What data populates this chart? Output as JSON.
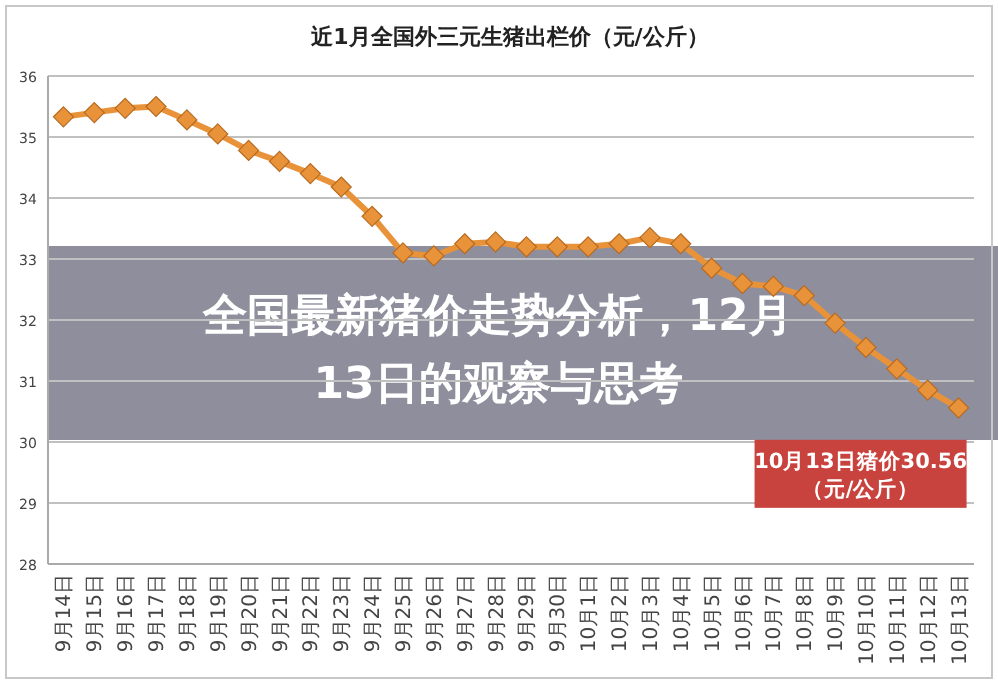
{
  "chart_data": {
    "type": "line",
    "title": "近1月全国外三元生猪出栏价（元/公斤）",
    "categories": [
      "9月14日",
      "9月15日",
      "9月16日",
      "9月17日",
      "9月18日",
      "9月19日",
      "9月20日",
      "9月21日",
      "9月22日",
      "9月23日",
      "9月24日",
      "9月25日",
      "9月26日",
      "9月27日",
      "9月28日",
      "9月29日",
      "9月30日",
      "10月1日",
      "10月2日",
      "10月3日",
      "10月4日",
      "10月5日",
      "10月6日",
      "10月7日",
      "10月8日",
      "10月9日",
      "10月10日",
      "10月11日",
      "10月12日",
      "10月13日"
    ],
    "series": [
      {
        "color": "#e8923a",
        "values": [
          35.33,
          35.4,
          35.47,
          35.5,
          35.28,
          35.05,
          34.78,
          34.6,
          34.4,
          34.18,
          33.7,
          33.1,
          33.05,
          33.25,
          33.28,
          33.2,
          33.2,
          33.2,
          33.25,
          33.35,
          33.25,
          32.85,
          32.6,
          32.55,
          32.4,
          31.95,
          31.55,
          31.2,
          30.85,
          30.56
        ]
      }
    ],
    "ylim": [
      28,
      36
    ],
    "yticks": [
      28,
      29,
      30,
      31,
      32,
      33,
      34,
      35,
      36
    ],
    "grid": "y",
    "marker": "diamond",
    "line_style": "solid",
    "annotations": [
      "全国最新猪价走势分析，12月13日的观察与思考",
      {
        "text": "10月13日猪价30.56\n（元/公斤）",
        "x": "10月13日",
        "y": 30.56
      }
    ]
  }
}
